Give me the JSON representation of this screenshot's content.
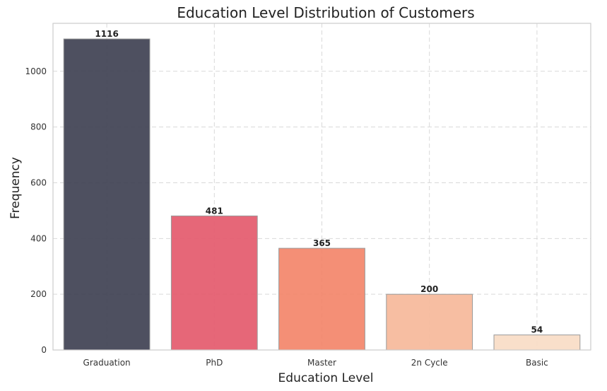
{
  "chart_data": {
    "type": "bar",
    "title": "Education Level Distribution of Customers",
    "xlabel": "Education Level",
    "ylabel": "Frequency",
    "categories": [
      "Graduation",
      "PhD",
      "Master",
      "2n Cycle",
      "Basic"
    ],
    "values": [
      1116,
      481,
      365,
      200,
      54
    ],
    "ylim": [
      0,
      1172
    ],
    "yticks": [
      0,
      200,
      400,
      600,
      800,
      1000
    ],
    "grid": true,
    "colors": [
      "#3f4152",
      "#e45a6d",
      "#f3856a",
      "#f6b89a",
      "#f8dcc6"
    ]
  }
}
